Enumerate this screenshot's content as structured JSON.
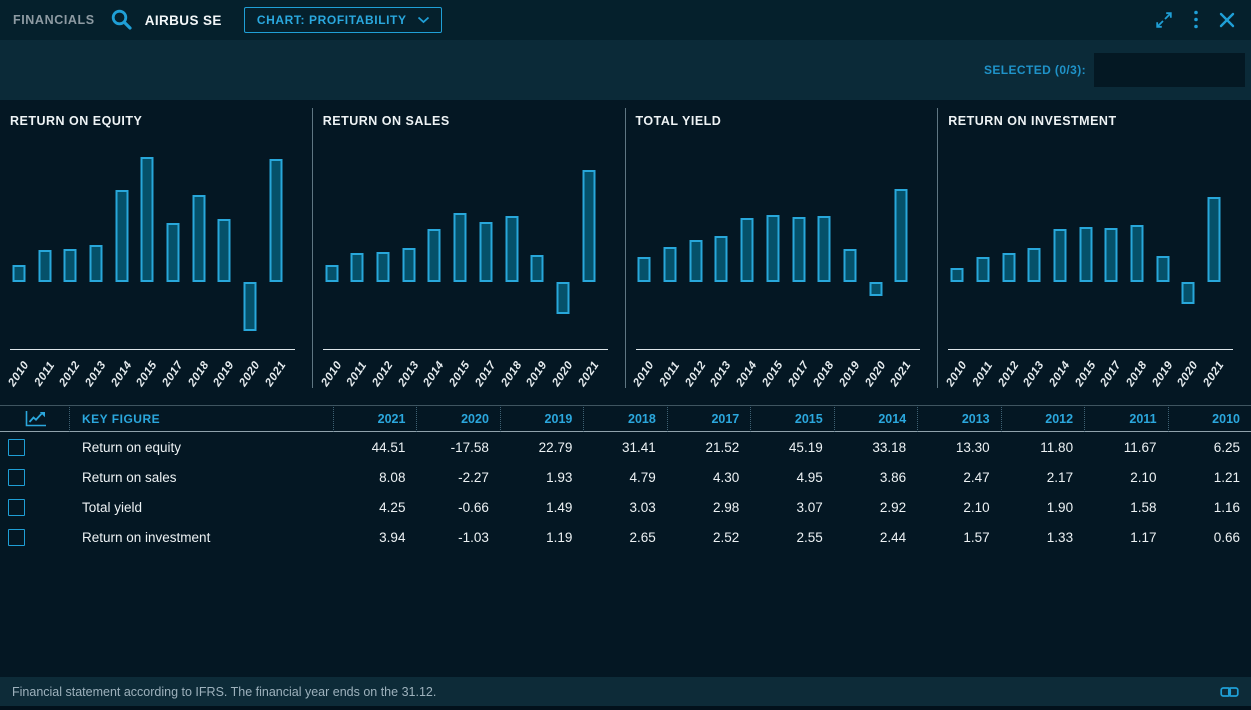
{
  "header": {
    "app_label": "FINANCIALS",
    "company": "AIRBUS SE",
    "chart_selector_label": "CHART: PROFITABILITY",
    "icons": [
      "search-icon",
      "chevron-down-icon",
      "expand-icon",
      "kebab-menu-icon",
      "close-icon"
    ]
  },
  "toolbar": {
    "selected_label": "SELECTED (0/3):"
  },
  "chart_data": [
    {
      "type": "bar",
      "title": "RETURN ON EQUITY",
      "categories": [
        "2010",
        "2011",
        "2012",
        "2013",
        "2014",
        "2015",
        "2017",
        "2018",
        "2019",
        "2020",
        "2021"
      ],
      "values": [
        6.25,
        11.67,
        11.8,
        13.3,
        33.18,
        45.19,
        21.52,
        31.41,
        22.79,
        -17.58,
        44.51
      ],
      "xlabel": "",
      "ylabel": "",
      "grid": false,
      "legend": "none"
    },
    {
      "type": "bar",
      "title": "RETURN ON SALES",
      "categories": [
        "2010",
        "2011",
        "2012",
        "2013",
        "2014",
        "2015",
        "2017",
        "2018",
        "2019",
        "2020",
        "2021"
      ],
      "values": [
        1.21,
        2.1,
        2.17,
        2.47,
        3.86,
        4.95,
        4.3,
        4.79,
        1.93,
        -2.27,
        8.08
      ],
      "xlabel": "",
      "ylabel": "",
      "grid": false,
      "legend": "none"
    },
    {
      "type": "bar",
      "title": "TOTAL YIELD",
      "categories": [
        "2010",
        "2011",
        "2012",
        "2013",
        "2014",
        "2015",
        "2017",
        "2018",
        "2019",
        "2020",
        "2021"
      ],
      "values": [
        1.16,
        1.58,
        1.9,
        2.1,
        2.92,
        3.07,
        2.98,
        3.03,
        1.49,
        -0.66,
        4.25
      ],
      "xlabel": "",
      "ylabel": "",
      "grid": false,
      "legend": "none"
    },
    {
      "type": "bar",
      "title": "RETURN ON INVESTMENT",
      "categories": [
        "2010",
        "2011",
        "2012",
        "2013",
        "2014",
        "2015",
        "2017",
        "2018",
        "2019",
        "2020",
        "2021"
      ],
      "values": [
        0.66,
        1.17,
        1.33,
        1.57,
        2.44,
        2.55,
        2.52,
        2.65,
        1.19,
        -1.03,
        3.94
      ],
      "xlabel": "",
      "ylabel": "",
      "grid": false,
      "legend": "none"
    }
  ],
  "table": {
    "key_figure_header": "KEY FIGURE",
    "year_columns": [
      "2021",
      "2020",
      "2019",
      "2018",
      "2017",
      "2015",
      "2014",
      "2013",
      "2012",
      "2011",
      "2010"
    ],
    "rows": [
      {
        "label": "Return on equity",
        "values": [
          "44.51",
          "-17.58",
          "22.79",
          "31.41",
          "21.52",
          "45.19",
          "33.18",
          "13.30",
          "11.80",
          "11.67",
          "6.25"
        ]
      },
      {
        "label": "Return on sales",
        "values": [
          "8.08",
          "-2.27",
          "1.93",
          "4.79",
          "4.30",
          "4.95",
          "3.86",
          "2.47",
          "2.17",
          "2.10",
          "1.21"
        ]
      },
      {
        "label": "Total yield",
        "values": [
          "4.25",
          "-0.66",
          "1.49",
          "3.03",
          "2.98",
          "3.07",
          "2.92",
          "2.10",
          "1.90",
          "1.58",
          "1.16"
        ]
      },
      {
        "label": "Return on investment",
        "values": [
          "3.94",
          "-1.03",
          "1.19",
          "2.65",
          "2.52",
          "2.55",
          "2.44",
          "1.57",
          "1.33",
          "1.17",
          "0.66"
        ]
      }
    ]
  },
  "footer": {
    "note": "Financial statement according to IFRS. The financial year ends on the 31.12."
  },
  "colors": {
    "accent": "#1f9fd6",
    "bar_fill": "#05516a",
    "bar_border": "#28a7da",
    "header_text": "#2ba7dd",
    "background": "#041723",
    "toolbar_background": "#0b2a38"
  }
}
